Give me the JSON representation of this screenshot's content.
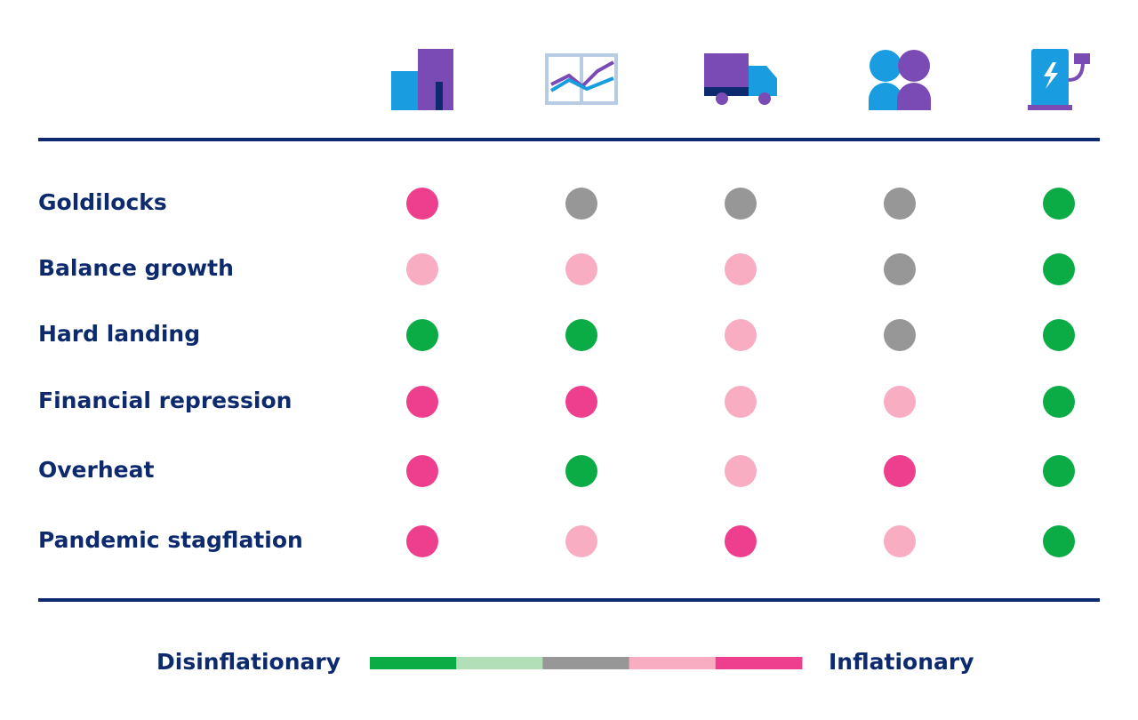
{
  "rows": [
    {
      "label": "Goldilocks",
      "cells": [
        "#ee3f8e",
        "#979797",
        "#979797",
        "#979797",
        "#0bab45"
      ]
    },
    {
      "label": "Balance growth",
      "cells": [
        "#f8adc3",
        "#f8adc3",
        "#f8adc3",
        "#979797",
        "#0bab45"
      ]
    },
    {
      "label": "Hard landing",
      "cells": [
        "#0bab45",
        "#0bab45",
        "#f8adc3",
        "#979797",
        "#0bab45"
      ]
    },
    {
      "label": "Financial repression",
      "cells": [
        "#ee3f8e",
        "#ee3f8e",
        "#f8adc3",
        "#f8adc3",
        "#0bab45"
      ]
    },
    {
      "label": "Overheat",
      "cells": [
        "#ee3f8e",
        "#0bab45",
        "#f8adc3",
        "#ee3f8e",
        "#0bab45"
      ]
    },
    {
      "label": "Pandemic stagflation",
      "cells": [
        "#ee3f8e",
        "#f8adc3",
        "#ee3f8e",
        "#f8adc3",
        "#0bab45"
      ]
    }
  ],
  "legend": {
    "left": "Disinflationary",
    "right": "Inflationary",
    "colors": [
      "#0bab45",
      "#b2dfb8",
      "#979797",
      "#f8adc3",
      "#ee3f8e"
    ]
  }
}
